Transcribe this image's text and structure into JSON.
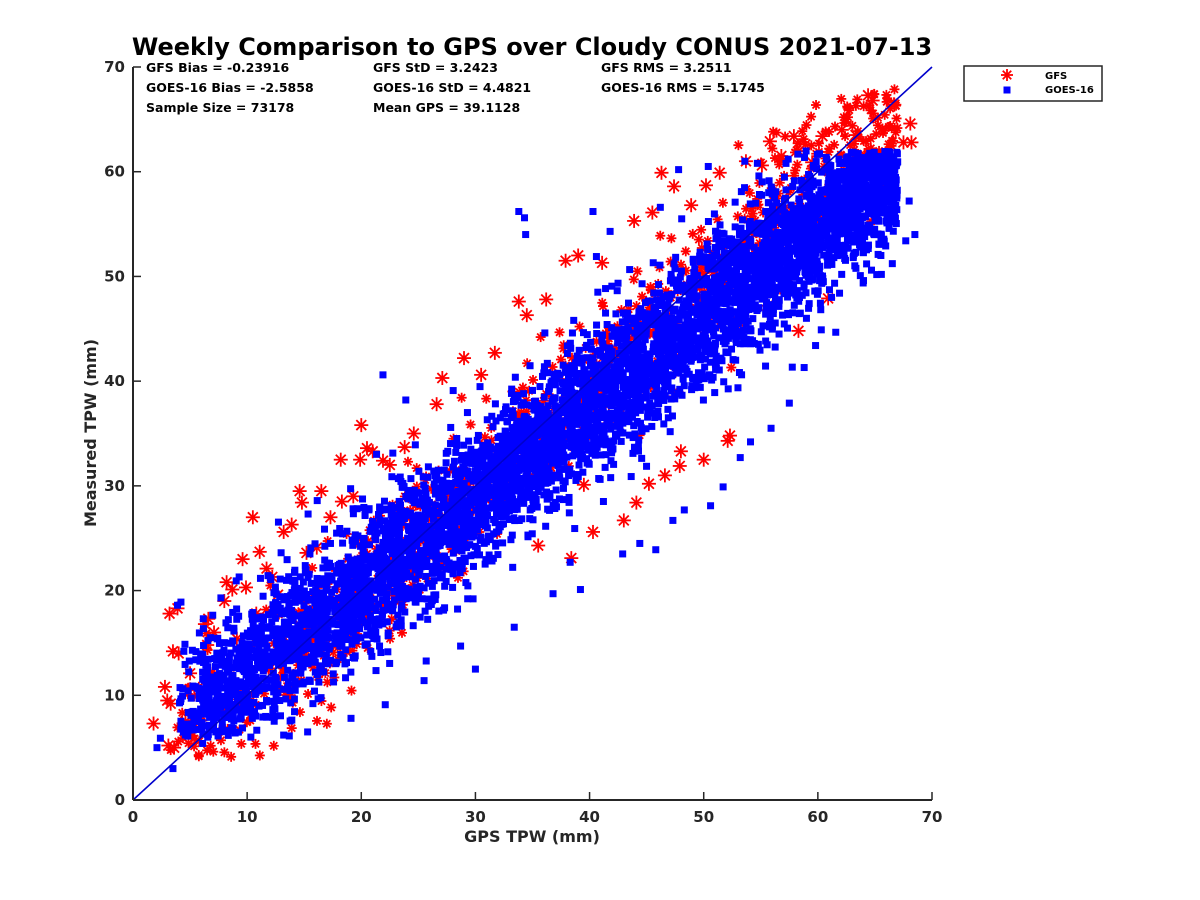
{
  "chart_data": {
    "type": "scatter",
    "title": "Weekly Comparison to GPS over Cloudy CONUS 2021-07-13",
    "xlabel": "GPS TPW (mm)",
    "ylabel": "Measured TPW (mm)",
    "xlim": [
      0,
      70
    ],
    "ylim": [
      0,
      70
    ],
    "xticks": [
      "0",
      "10",
      "20",
      "30",
      "40",
      "50",
      "60",
      "70"
    ],
    "yticks": [
      "0",
      "10",
      "20",
      "30",
      "40",
      "50",
      "60",
      "70"
    ],
    "grid": false,
    "legend_position": "outside top-right",
    "reference_line": {
      "from": [
        0,
        0
      ],
      "to": [
        70,
        70
      ],
      "color": "#0000cc"
    },
    "stats": [
      [
        "GFS Bias = -0.23916",
        "GFS StD = 3.2423",
        "GFS RMS = 3.2511"
      ],
      [
        "GOES-16 Bias = -2.5858",
        "GOES-16 StD = 4.4821",
        "GOES-16 RMS = 5.1745"
      ],
      [
        "Sample Size = 73178",
        "Mean GPS = 39.1128"
      ]
    ],
    "series": [
      {
        "name": "GFS",
        "marker": "asterisk",
        "color": "#ff0000",
        "points": [
          [
            1.8,
            7.3
          ],
          [
            2.8,
            10.8
          ],
          [
            3.2,
            17.8
          ],
          [
            3.5,
            14.2
          ],
          [
            3.3,
            9.2
          ],
          [
            4.0,
            14.0
          ],
          [
            3.9,
            18.3
          ],
          [
            3.1,
            5.2
          ],
          [
            3.6,
            5.0
          ],
          [
            4.6,
            7.5
          ],
          [
            5.2,
            7.6
          ],
          [
            5.9,
            7.6
          ],
          [
            6.3,
            16.8
          ],
          [
            6.6,
            17.3
          ],
          [
            7.1,
            16.0
          ],
          [
            8.0,
            19.0
          ],
          [
            8.2,
            20.8
          ],
          [
            8.7,
            20.1
          ],
          [
            9.6,
            23.0
          ],
          [
            9.9,
            20.3
          ],
          [
            10.5,
            27.0
          ],
          [
            11.1,
            23.7
          ],
          [
            11.7,
            22.1
          ],
          [
            12.2,
            21.3
          ],
          [
            13.2,
            25.6
          ],
          [
            13.9,
            26.3
          ],
          [
            14.6,
            29.5
          ],
          [
            14.8,
            28.4
          ],
          [
            15.2,
            23.6
          ],
          [
            16.5,
            29.5
          ],
          [
            17.3,
            27.0
          ],
          [
            18.2,
            32.5
          ],
          [
            18.3,
            28.5
          ],
          [
            19.3,
            29.0
          ],
          [
            19.9,
            32.5
          ],
          [
            20.0,
            35.8
          ],
          [
            20.5,
            33.6
          ],
          [
            21.0,
            33.3
          ],
          [
            21.9,
            32.4
          ],
          [
            22.5,
            32.0
          ],
          [
            24.6,
            35.0
          ],
          [
            26.6,
            37.8
          ],
          [
            27.1,
            40.3
          ],
          [
            29.0,
            42.2
          ],
          [
            31.7,
            42.7
          ],
          [
            33.8,
            47.6
          ],
          [
            34.5,
            46.3
          ],
          [
            37.9,
            51.5
          ],
          [
            39.0,
            52.0
          ],
          [
            43.9,
            55.3
          ],
          [
            46.3,
            59.9
          ],
          [
            47.4,
            58.6
          ],
          [
            48.9,
            56.8
          ],
          [
            51.4,
            59.9
          ],
          [
            53.7,
            61.0
          ],
          [
            55.1,
            60.6
          ],
          [
            56.8,
            61.5
          ],
          [
            57.9,
            63.4
          ],
          [
            58.9,
            62.6
          ],
          [
            60.4,
            63.4
          ],
          [
            62.1,
            64.0
          ],
          [
            63.3,
            63.5
          ],
          [
            64.1,
            61.6
          ],
          [
            64.8,
            66.8
          ],
          [
            64.4,
            67.3
          ],
          [
            65.4,
            60.3
          ],
          [
            65.8,
            59.5
          ],
          [
            66.7,
            66.4
          ],
          [
            67.5,
            62.8
          ],
          [
            68.1,
            64.6
          ],
          [
            68.2,
            62.8
          ],
          [
            52.3,
            34.8
          ],
          [
            52.1,
            34.3
          ],
          [
            46.6,
            31.0
          ],
          [
            47.9,
            31.9
          ],
          [
            50.0,
            32.5
          ],
          [
            48.0,
            33.3
          ],
          [
            39.5,
            30.1
          ],
          [
            44.1,
            28.4
          ],
          [
            45.2,
            30.2
          ],
          [
            43.0,
            26.7
          ],
          [
            40.3,
            25.6
          ],
          [
            38.4,
            23.1
          ],
          [
            35.5,
            24.3
          ],
          [
            41.8,
            36.0
          ],
          [
            58.3,
            44.8
          ],
          [
            55.6,
            47.2
          ],
          [
            53.2,
            45.5
          ],
          [
            60.9,
            47.9
          ],
          [
            3.0,
            9.5
          ],
          [
            5.0,
            12.1
          ],
          [
            6.5,
            14.8
          ],
          [
            7.2,
            11.6
          ],
          [
            9.1,
            15.4
          ],
          [
            10.8,
            17.8
          ],
          [
            12.7,
            19.6
          ],
          [
            16.1,
            24.1
          ],
          [
            23.8,
            33.7
          ],
          [
            30.5,
            40.6
          ],
          [
            36.2,
            47.8
          ],
          [
            41.1,
            51.3
          ],
          [
            45.5,
            56.1
          ],
          [
            50.2,
            58.7
          ],
          [
            55.8,
            62.9
          ],
          [
            59.5,
            60.9
          ],
          [
            61.2,
            58.8
          ]
        ]
      },
      {
        "name": "GOES-16",
        "marker": "square",
        "color": "#0000ff",
        "points": [
          [
            3.5,
            3.0
          ],
          [
            2.1,
            5.0
          ],
          [
            2.4,
            5.9
          ],
          [
            6.1,
            5.4
          ],
          [
            3.9,
            18.6
          ],
          [
            4.2,
            18.9
          ],
          [
            4.8,
            6.1
          ],
          [
            8.6,
            6.6
          ],
          [
            13.2,
            6.2
          ],
          [
            15.3,
            6.5
          ],
          [
            19.1,
            7.8
          ],
          [
            22.1,
            9.1
          ],
          [
            25.5,
            11.4
          ],
          [
            28.7,
            14.7
          ],
          [
            30.0,
            12.5
          ],
          [
            33.4,
            16.5
          ],
          [
            36.8,
            19.7
          ],
          [
            38.3,
            22.7
          ],
          [
            39.2,
            20.1
          ],
          [
            42.9,
            23.5
          ],
          [
            44.4,
            24.5
          ],
          [
            45.8,
            23.9
          ],
          [
            47.3,
            26.7
          ],
          [
            48.3,
            27.7
          ],
          [
            50.6,
            28.1
          ],
          [
            51.7,
            29.9
          ],
          [
            53.2,
            32.7
          ],
          [
            54.1,
            34.2
          ],
          [
            55.9,
            35.5
          ],
          [
            57.5,
            37.9
          ],
          [
            58.8,
            41.3
          ],
          [
            59.8,
            43.4
          ],
          [
            60.3,
            44.9
          ],
          [
            61.2,
            48.0
          ],
          [
            63.1,
            51.8
          ],
          [
            64.9,
            54.4
          ],
          [
            66.3,
            56.0
          ],
          [
            67.7,
            53.4
          ],
          [
            68.0,
            57.2
          ],
          [
            68.5,
            54.0
          ],
          [
            33.8,
            56.2
          ],
          [
            34.3,
            55.6
          ],
          [
            34.4,
            54.0
          ],
          [
            40.3,
            56.2
          ],
          [
            40.6,
            51.9
          ],
          [
            41.8,
            54.3
          ],
          [
            46.2,
            56.6
          ],
          [
            47.8,
            60.2
          ],
          [
            50.4,
            60.5
          ],
          [
            53.6,
            61.0
          ],
          [
            54.7,
            60.8
          ],
          [
            57.4,
            61.2
          ],
          [
            59.6,
            60.6
          ],
          [
            21.9,
            40.6
          ],
          [
            23.9,
            38.2
          ],
          [
            19.2,
            24.8
          ],
          [
            18.1,
            22.5
          ],
          [
            17.3,
            24.5
          ],
          [
            26.7,
            26.0
          ],
          [
            28.7,
            27.2
          ],
          [
            31.5,
            28.3
          ],
          [
            15.5,
            23.5
          ],
          [
            9.3,
            21.3
          ],
          [
            7.7,
            19.3
          ],
          [
            10.5,
            17.9
          ],
          [
            12.9,
            21.1
          ],
          [
            5.2,
            14.3
          ],
          [
            6.7,
            9.3
          ],
          [
            7.9,
            11.7
          ],
          [
            10.0,
            14.5
          ],
          [
            11.5,
            16.5
          ],
          [
            12.3,
            12.1
          ],
          [
            13.7,
            18.8
          ],
          [
            14.7,
            13.2
          ],
          [
            16.5,
            17.5
          ],
          [
            17.7,
            15.7
          ],
          [
            18.9,
            20.4
          ],
          [
            20.2,
            23.5
          ],
          [
            21.3,
            18.1
          ],
          [
            22.7,
            27.3
          ],
          [
            23.1,
            22.6
          ],
          [
            24.3,
            21.4
          ],
          [
            25.6,
            29.8
          ],
          [
            26.4,
            25.2
          ],
          [
            27.5,
            31.1
          ],
          [
            28.4,
            24.3
          ],
          [
            29.6,
            33.5
          ],
          [
            30.7,
            30.1
          ],
          [
            31.8,
            36.2
          ],
          [
            32.4,
            27.8
          ],
          [
            33.5,
            38.1
          ],
          [
            34.8,
            33.3
          ],
          [
            35.4,
            31.0
          ],
          [
            36.3,
            41.7
          ],
          [
            37.5,
            35.3
          ],
          [
            38.5,
            44.6
          ],
          [
            39.6,
            38.8
          ],
          [
            40.2,
            33.1
          ],
          [
            41.4,
            46.5
          ],
          [
            42.6,
            40.4
          ],
          [
            43.5,
            37.4
          ],
          [
            44.6,
            49.3
          ],
          [
            45.3,
            42.6
          ],
          [
            46.5,
            39.1
          ],
          [
            47.4,
            51.2
          ],
          [
            48.7,
            45.7
          ],
          [
            49.5,
            42.3
          ],
          [
            50.3,
            53.1
          ],
          [
            51.4,
            47.5
          ],
          [
            52.6,
            44.3
          ],
          [
            53.4,
            55.4
          ],
          [
            54.5,
            50.5
          ],
          [
            55.5,
            47.5
          ],
          [
            56.2,
            57.5
          ],
          [
            57.6,
            52.4
          ],
          [
            58.4,
            49.6
          ],
          [
            59.3,
            58.9
          ],
          [
            60.6,
            54.1
          ],
          [
            61.4,
            51.8
          ],
          [
            62.2,
            57.2
          ],
          [
            63.5,
            55.6
          ],
          [
            64.1,
            53.8
          ],
          [
            65.3,
            56.9
          ],
          [
            66.4,
            55.2
          ],
          [
            25.9,
            18.5
          ],
          [
            28.0,
            20.3
          ],
          [
            31.2,
            23.4
          ],
          [
            34.6,
            25.3
          ],
          [
            37.1,
            28.0
          ],
          [
            40.8,
            30.7
          ],
          [
            43.8,
            33.1
          ],
          [
            46.9,
            36.5
          ],
          [
            49.7,
            39.4
          ],
          [
            52.8,
            42.0
          ],
          [
            56.6,
            44.5
          ],
          [
            59.0,
            46.0
          ],
          [
            61.9,
            48.4
          ],
          [
            64.7,
            50.6
          ],
          [
            18.4,
            13.6
          ],
          [
            21.6,
            14.7
          ],
          [
            23.5,
            16.6
          ],
          [
            11.7,
            9.5
          ],
          [
            9.5,
            8.7
          ],
          [
            15.9,
            10.4
          ],
          [
            44.9,
            47.5
          ],
          [
            36.9,
            36.1
          ],
          [
            29.3,
            29.7
          ],
          [
            48.9,
            49.8
          ],
          [
            55.1,
            54.3
          ]
        ]
      }
    ]
  }
}
